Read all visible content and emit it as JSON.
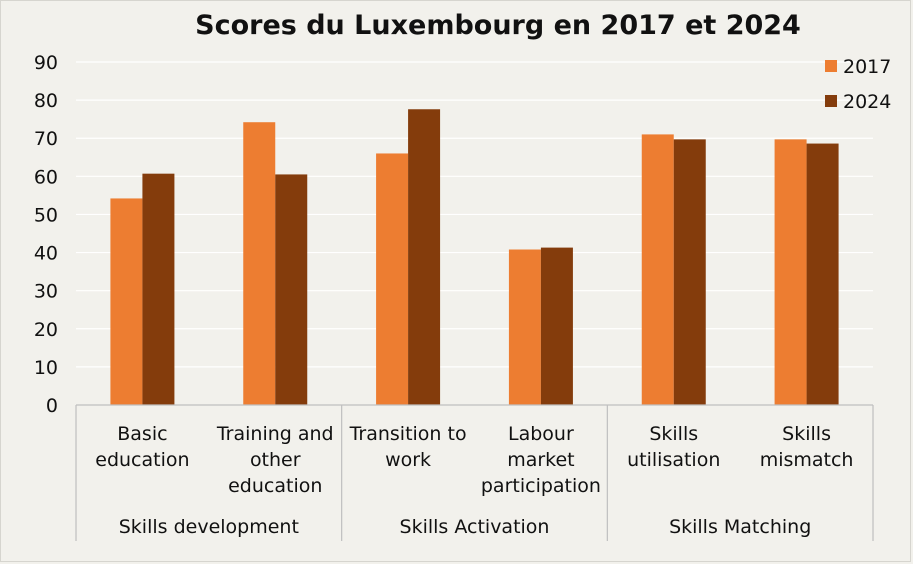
{
  "chart_data": {
    "type": "bar",
    "title": "Scores du Luxembourg en 2017 et 2024",
    "xlabel": "",
    "ylabel": "",
    "ylim": [
      0,
      90
    ],
    "yticks": [
      0,
      10,
      20,
      30,
      40,
      50,
      60,
      70,
      80,
      90
    ],
    "grid": true,
    "legend_position": "top-right",
    "categories": [
      [
        "Basic",
        "education"
      ],
      [
        "Training and",
        "other",
        "education"
      ],
      [
        "Transition to",
        "work"
      ],
      [
        "Labour",
        "market",
        "participation"
      ],
      [
        "Skills",
        "utilisation"
      ],
      [
        "Skills",
        "mismatch"
      ]
    ],
    "groups": [
      {
        "label": "Skills development",
        "span": 2
      },
      {
        "label": "Skills Activation",
        "span": 2
      },
      {
        "label": "Skills Matching",
        "span": 2
      }
    ],
    "series": [
      {
        "name": "2017",
        "color": "#ed7d31",
        "values": [
          54.2,
          74.2,
          66.0,
          40.8,
          71.0,
          69.7
        ]
      },
      {
        "name": "2024",
        "color": "#843c0c",
        "values": [
          60.7,
          60.5,
          77.6,
          41.3,
          69.7,
          68.6
        ]
      }
    ]
  }
}
